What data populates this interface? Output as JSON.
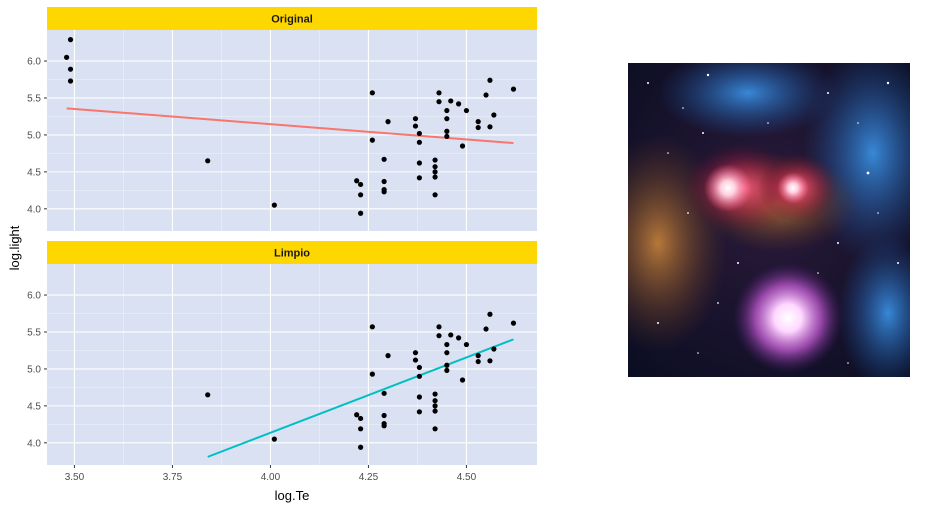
{
  "chart_data": {
    "type": "scatter",
    "facet_layout": "2 rows, shared x axis",
    "xlabel": "log.Te",
    "ylabel": "log.light",
    "xlim": [
      3.43,
      4.68
    ],
    "ylim": [
      3.7,
      6.42
    ],
    "x_ticks": [
      3.5,
      3.75,
      4.0,
      4.25,
      4.5
    ],
    "x_tick_labels": [
      "3.50",
      "3.75",
      "4.00",
      "4.25",
      "4.50"
    ],
    "y_ticks": [
      4.0,
      4.5,
      5.0,
      5.5,
      6.0
    ],
    "y_tick_labels": [
      "4.0",
      "4.5",
      "5.0",
      "5.5",
      "6.0"
    ],
    "grid": true,
    "panel_background": "#d9e1f2",
    "strip_fill": "#ffd700",
    "point_color": "#000000",
    "panels": [
      {
        "strip": "Original",
        "points": [
          [
            3.49,
            6.29
          ],
          [
            3.48,
            6.05
          ],
          [
            3.49,
            5.89
          ],
          [
            3.49,
            5.73
          ],
          [
            3.84,
            4.65
          ],
          [
            4.01,
            4.05
          ],
          [
            4.22,
            4.38
          ],
          [
            4.23,
            4.33
          ],
          [
            4.23,
            4.19
          ],
          [
            4.23,
            3.94
          ],
          [
            4.26,
            5.57
          ],
          [
            4.26,
            4.93
          ],
          [
            4.29,
            4.67
          ],
          [
            4.29,
            4.37
          ],
          [
            4.29,
            4.26
          ],
          [
            4.29,
            4.23
          ],
          [
            4.3,
            5.18
          ],
          [
            4.37,
            5.22
          ],
          [
            4.37,
            5.12
          ],
          [
            4.38,
            5.02
          ],
          [
            4.38,
            4.9
          ],
          [
            4.38,
            4.62
          ],
          [
            4.38,
            4.42
          ],
          [
            4.42,
            4.66
          ],
          [
            4.42,
            4.57
          ],
          [
            4.42,
            4.5
          ],
          [
            4.42,
            4.43
          ],
          [
            4.42,
            4.19
          ],
          [
            4.43,
            5.57
          ],
          [
            4.43,
            5.45
          ],
          [
            4.45,
            5.33
          ],
          [
            4.45,
            5.22
          ],
          [
            4.45,
            5.05
          ],
          [
            4.45,
            4.98
          ],
          [
            4.46,
            5.46
          ],
          [
            4.48,
            5.42
          ],
          [
            4.49,
            4.85
          ],
          [
            4.5,
            5.33
          ],
          [
            4.53,
            5.18
          ],
          [
            4.53,
            5.1
          ],
          [
            4.55,
            5.54
          ],
          [
            4.56,
            5.74
          ],
          [
            4.56,
            5.11
          ],
          [
            4.57,
            5.27
          ],
          [
            4.62,
            5.62
          ]
        ],
        "fit_line": {
          "color": "#f8766d",
          "x": [
            3.48,
            4.62
          ],
          "y": [
            5.36,
            4.89
          ]
        }
      },
      {
        "strip": "Limpio",
        "points": [
          [
            3.84,
            4.65
          ],
          [
            4.01,
            4.05
          ],
          [
            4.22,
            4.38
          ],
          [
            4.23,
            4.33
          ],
          [
            4.23,
            4.19
          ],
          [
            4.23,
            3.94
          ],
          [
            4.26,
            5.57
          ],
          [
            4.26,
            4.93
          ],
          [
            4.29,
            4.67
          ],
          [
            4.29,
            4.37
          ],
          [
            4.29,
            4.26
          ],
          [
            4.29,
            4.23
          ],
          [
            4.3,
            5.18
          ],
          [
            4.37,
            5.22
          ],
          [
            4.37,
            5.12
          ],
          [
            4.38,
            5.02
          ],
          [
            4.38,
            4.9
          ],
          [
            4.38,
            4.62
          ],
          [
            4.38,
            4.42
          ],
          [
            4.42,
            4.66
          ],
          [
            4.42,
            4.57
          ],
          [
            4.42,
            4.5
          ],
          [
            4.42,
            4.43
          ],
          [
            4.42,
            4.19
          ],
          [
            4.43,
            5.57
          ],
          [
            4.43,
            5.45
          ],
          [
            4.45,
            5.33
          ],
          [
            4.45,
            5.22
          ],
          [
            4.45,
            5.05
          ],
          [
            4.45,
            4.98
          ],
          [
            4.46,
            5.46
          ],
          [
            4.48,
            5.42
          ],
          [
            4.49,
            4.85
          ],
          [
            4.5,
            5.33
          ],
          [
            4.53,
            5.18
          ],
          [
            4.53,
            5.1
          ],
          [
            4.55,
            5.54
          ],
          [
            4.56,
            5.74
          ],
          [
            4.56,
            5.11
          ],
          [
            4.57,
            5.27
          ],
          [
            4.62,
            5.62
          ]
        ],
        "fit_line": {
          "color": "#00bfc4",
          "x": [
            3.84,
            4.62
          ],
          "y": [
            3.81,
            5.4
          ]
        }
      }
    ]
  },
  "image": {
    "subject": "nebula-image"
  }
}
